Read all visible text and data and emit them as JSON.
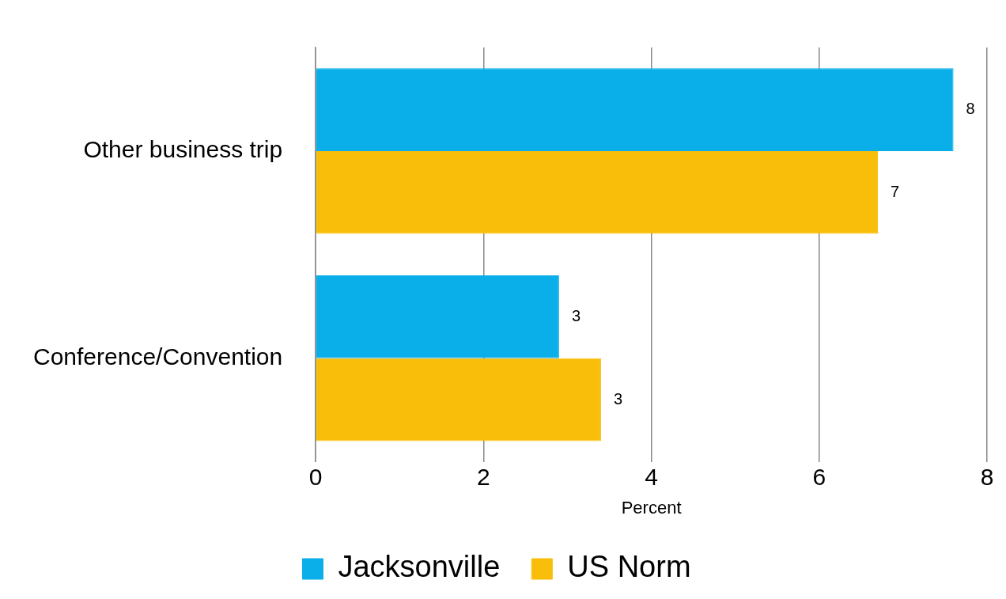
{
  "chart_data": {
    "type": "bar",
    "orientation": "horizontal",
    "categories": [
      "Other business trip",
      "Conference/Convention"
    ],
    "series": [
      {
        "name": "Jacksonville",
        "color": "#0aaee9",
        "values": [
          7.6,
          2.9
        ],
        "value_labels": [
          "8",
          "3"
        ]
      },
      {
        "name": "US Norm",
        "color": "#f9be0a",
        "values": [
          6.7,
          3.4
        ],
        "value_labels": [
          "7",
          "3"
        ]
      }
    ],
    "xlabel": "Percent",
    "xlim": [
      0,
      8
    ],
    "xticks": [
      0,
      2,
      4,
      6,
      8
    ],
    "grid": "x",
    "legend": "bottom"
  }
}
